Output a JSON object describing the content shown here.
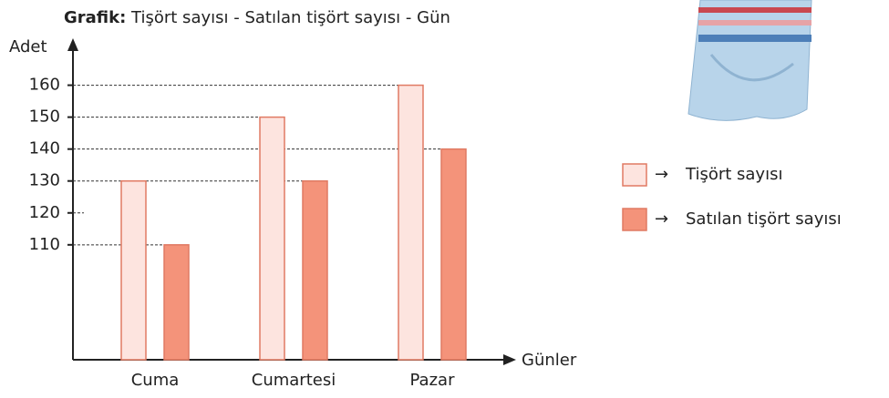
{
  "chart_data": {
    "type": "bar",
    "title_label": "Grafik:",
    "title": "Tişört sayısı - Satılan tişört sayısı - Gün",
    "y_label": "Adet",
    "x_label": "Günler",
    "categories": [
      "Cuma",
      "Cumartesi",
      "Pazar"
    ],
    "series": [
      {
        "name": "Tişört sayısı",
        "color": "#fde4df",
        "values": [
          130,
          150,
          160
        ]
      },
      {
        "name": "Satılan tişört sayısı",
        "color": "#f4937a",
        "values": [
          110,
          130,
          140
        ]
      }
    ],
    "ylim": [
      74,
      173
    ],
    "yticks": [
      110,
      120,
      130,
      140,
      150,
      160
    ],
    "grid": true
  }
}
